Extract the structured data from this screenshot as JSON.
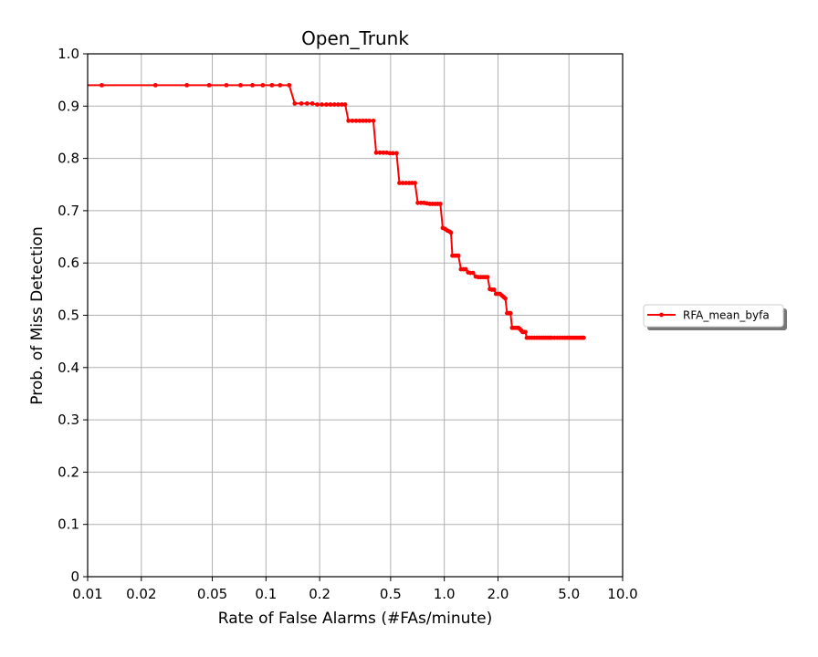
{
  "chart_data": {
    "type": "line",
    "title": "Open_Trunk",
    "xlabel": "Rate of False Alarms (#FAs/minute)",
    "ylabel": "Prob. of Miss Detection",
    "xscale": "log",
    "xlim": [
      0.01,
      10.0
    ],
    "ylim": [
      0,
      1.0
    ],
    "grid": true,
    "legend_position": "right, outside plot area",
    "x_ticks": [
      0.01,
      0.02,
      0.05,
      0.1,
      0.2,
      0.5,
      1.0,
      2.0,
      5.0,
      10.0
    ],
    "x_tick_labels": [
      "0.01",
      "0.02",
      "0.05",
      "0.1",
      "0.2",
      "0.5",
      "1.0",
      "2.0",
      "5.0",
      "10.0"
    ],
    "y_ticks": [
      0,
      0.1,
      0.2,
      0.3,
      0.4,
      0.5,
      0.6,
      0.7,
      0.8,
      0.9,
      1.0
    ],
    "y_tick_labels": [
      "0",
      "0.1",
      "0.2",
      "0.3",
      "0.4",
      "0.5",
      "0.6",
      "0.7",
      "0.8",
      "0.9",
      "1.0"
    ],
    "series": [
      {
        "name": "RFA_mean_byfa",
        "color": "#ff0000",
        "marker": "dot",
        "points": [
          [
            0.006,
            0.94
          ],
          [
            0.012,
            0.94
          ],
          [
            0.024,
            0.94
          ],
          [
            0.036,
            0.94
          ],
          [
            0.048,
            0.94
          ],
          [
            0.06,
            0.94
          ],
          [
            0.072,
            0.94
          ],
          [
            0.084,
            0.94
          ],
          [
            0.096,
            0.94
          ],
          [
            0.108,
            0.94
          ],
          [
            0.12,
            0.94
          ],
          [
            0.135,
            0.94
          ],
          [
            0.145,
            0.905
          ],
          [
            0.158,
            0.905
          ],
          [
            0.17,
            0.905
          ],
          [
            0.182,
            0.905
          ],
          [
            0.194,
            0.903
          ],
          [
            0.206,
            0.903
          ],
          [
            0.218,
            0.903
          ],
          [
            0.23,
            0.903
          ],
          [
            0.242,
            0.903
          ],
          [
            0.254,
            0.903
          ],
          [
            0.266,
            0.903
          ],
          [
            0.278,
            0.903
          ],
          [
            0.29,
            0.872
          ],
          [
            0.305,
            0.872
          ],
          [
            0.32,
            0.872
          ],
          [
            0.335,
            0.872
          ],
          [
            0.35,
            0.872
          ],
          [
            0.365,
            0.872
          ],
          [
            0.38,
            0.872
          ],
          [
            0.4,
            0.872
          ],
          [
            0.415,
            0.811
          ],
          [
            0.435,
            0.811
          ],
          [
            0.455,
            0.811
          ],
          [
            0.475,
            0.811
          ],
          [
            0.495,
            0.81
          ],
          [
            0.515,
            0.81
          ],
          [
            0.54,
            0.81
          ],
          [
            0.56,
            0.753
          ],
          [
            0.585,
            0.753
          ],
          [
            0.61,
            0.753
          ],
          [
            0.635,
            0.753
          ],
          [
            0.66,
            0.753
          ],
          [
            0.685,
            0.753
          ],
          [
            0.71,
            0.715
          ],
          [
            0.74,
            0.715
          ],
          [
            0.77,
            0.715
          ],
          [
            0.8,
            0.714
          ],
          [
            0.83,
            0.713
          ],
          [
            0.86,
            0.713
          ],
          [
            0.89,
            0.713
          ],
          [
            0.92,
            0.713
          ],
          [
            0.95,
            0.713
          ],
          [
            0.98,
            0.667
          ],
          [
            1.01,
            0.665
          ],
          [
            1.04,
            0.662
          ],
          [
            1.07,
            0.66
          ],
          [
            1.09,
            0.658
          ],
          [
            1.11,
            0.614
          ],
          [
            1.14,
            0.614
          ],
          [
            1.17,
            0.614
          ],
          [
            1.2,
            0.614
          ],
          [
            1.24,
            0.588
          ],
          [
            1.28,
            0.588
          ],
          [
            1.32,
            0.588
          ],
          [
            1.36,
            0.582
          ],
          [
            1.4,
            0.581
          ],
          [
            1.45,
            0.581
          ],
          [
            1.5,
            0.574
          ],
          [
            1.55,
            0.573
          ],
          [
            1.6,
            0.573
          ],
          [
            1.65,
            0.573
          ],
          [
            1.7,
            0.573
          ],
          [
            1.75,
            0.573
          ],
          [
            1.8,
            0.55
          ],
          [
            1.85,
            0.549
          ],
          [
            1.9,
            0.549
          ],
          [
            1.95,
            0.541
          ],
          [
            2.0,
            0.541
          ],
          [
            2.05,
            0.541
          ],
          [
            2.1,
            0.538
          ],
          [
            2.15,
            0.535
          ],
          [
            2.2,
            0.532
          ],
          [
            2.25,
            0.504
          ],
          [
            2.3,
            0.504
          ],
          [
            2.35,
            0.504
          ],
          [
            2.4,
            0.476
          ],
          [
            2.45,
            0.476
          ],
          [
            2.5,
            0.476
          ],
          [
            2.55,
            0.476
          ],
          [
            2.6,
            0.476
          ],
          [
            2.65,
            0.474
          ],
          [
            2.7,
            0.471
          ],
          [
            2.75,
            0.468
          ],
          [
            2.8,
            0.468
          ],
          [
            2.85,
            0.468
          ],
          [
            2.9,
            0.457
          ],
          [
            3.0,
            0.457
          ],
          [
            3.1,
            0.457
          ],
          [
            3.2,
            0.457
          ],
          [
            3.3,
            0.457
          ],
          [
            3.4,
            0.457
          ],
          [
            3.5,
            0.457
          ],
          [
            3.6,
            0.457
          ],
          [
            3.7,
            0.457
          ],
          [
            3.8,
            0.457
          ],
          [
            3.9,
            0.457
          ],
          [
            4.0,
            0.457
          ],
          [
            4.15,
            0.457
          ],
          [
            4.3,
            0.457
          ],
          [
            4.45,
            0.457
          ],
          [
            4.6,
            0.457
          ],
          [
            4.75,
            0.457
          ],
          [
            4.9,
            0.457
          ],
          [
            5.05,
            0.457
          ],
          [
            5.2,
            0.457
          ],
          [
            5.35,
            0.457
          ],
          [
            5.5,
            0.457
          ],
          [
            5.65,
            0.457
          ],
          [
            5.8,
            0.457
          ],
          [
            5.95,
            0.457
          ],
          [
            6.05,
            0.457
          ]
        ]
      }
    ]
  }
}
